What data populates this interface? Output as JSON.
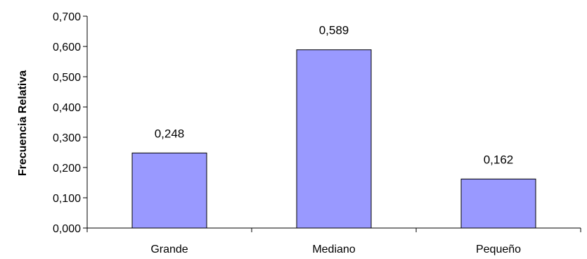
{
  "chart_data": {
    "type": "bar",
    "title": "",
    "xlabel": "",
    "ylabel": "Frecuencia Relativa",
    "categories": [
      "Grande",
      "Mediano",
      "Pequeño"
    ],
    "values": [
      0.248,
      0.589,
      0.162
    ],
    "data_labels": [
      "0,248",
      "0,589",
      "0,162"
    ],
    "yticks": [
      0.0,
      0.1,
      0.2,
      0.3,
      0.4,
      0.5,
      0.6,
      0.7
    ],
    "ytick_labels": [
      "0,000",
      "0,100",
      "0,200",
      "0,300",
      "0,400",
      "0,500",
      "0,600",
      "0,700"
    ],
    "ylim": [
      0,
      0.7
    ],
    "grid": false,
    "legend": "none",
    "bar_color": "#9999ff",
    "bar_edge_color": "#000000"
  }
}
